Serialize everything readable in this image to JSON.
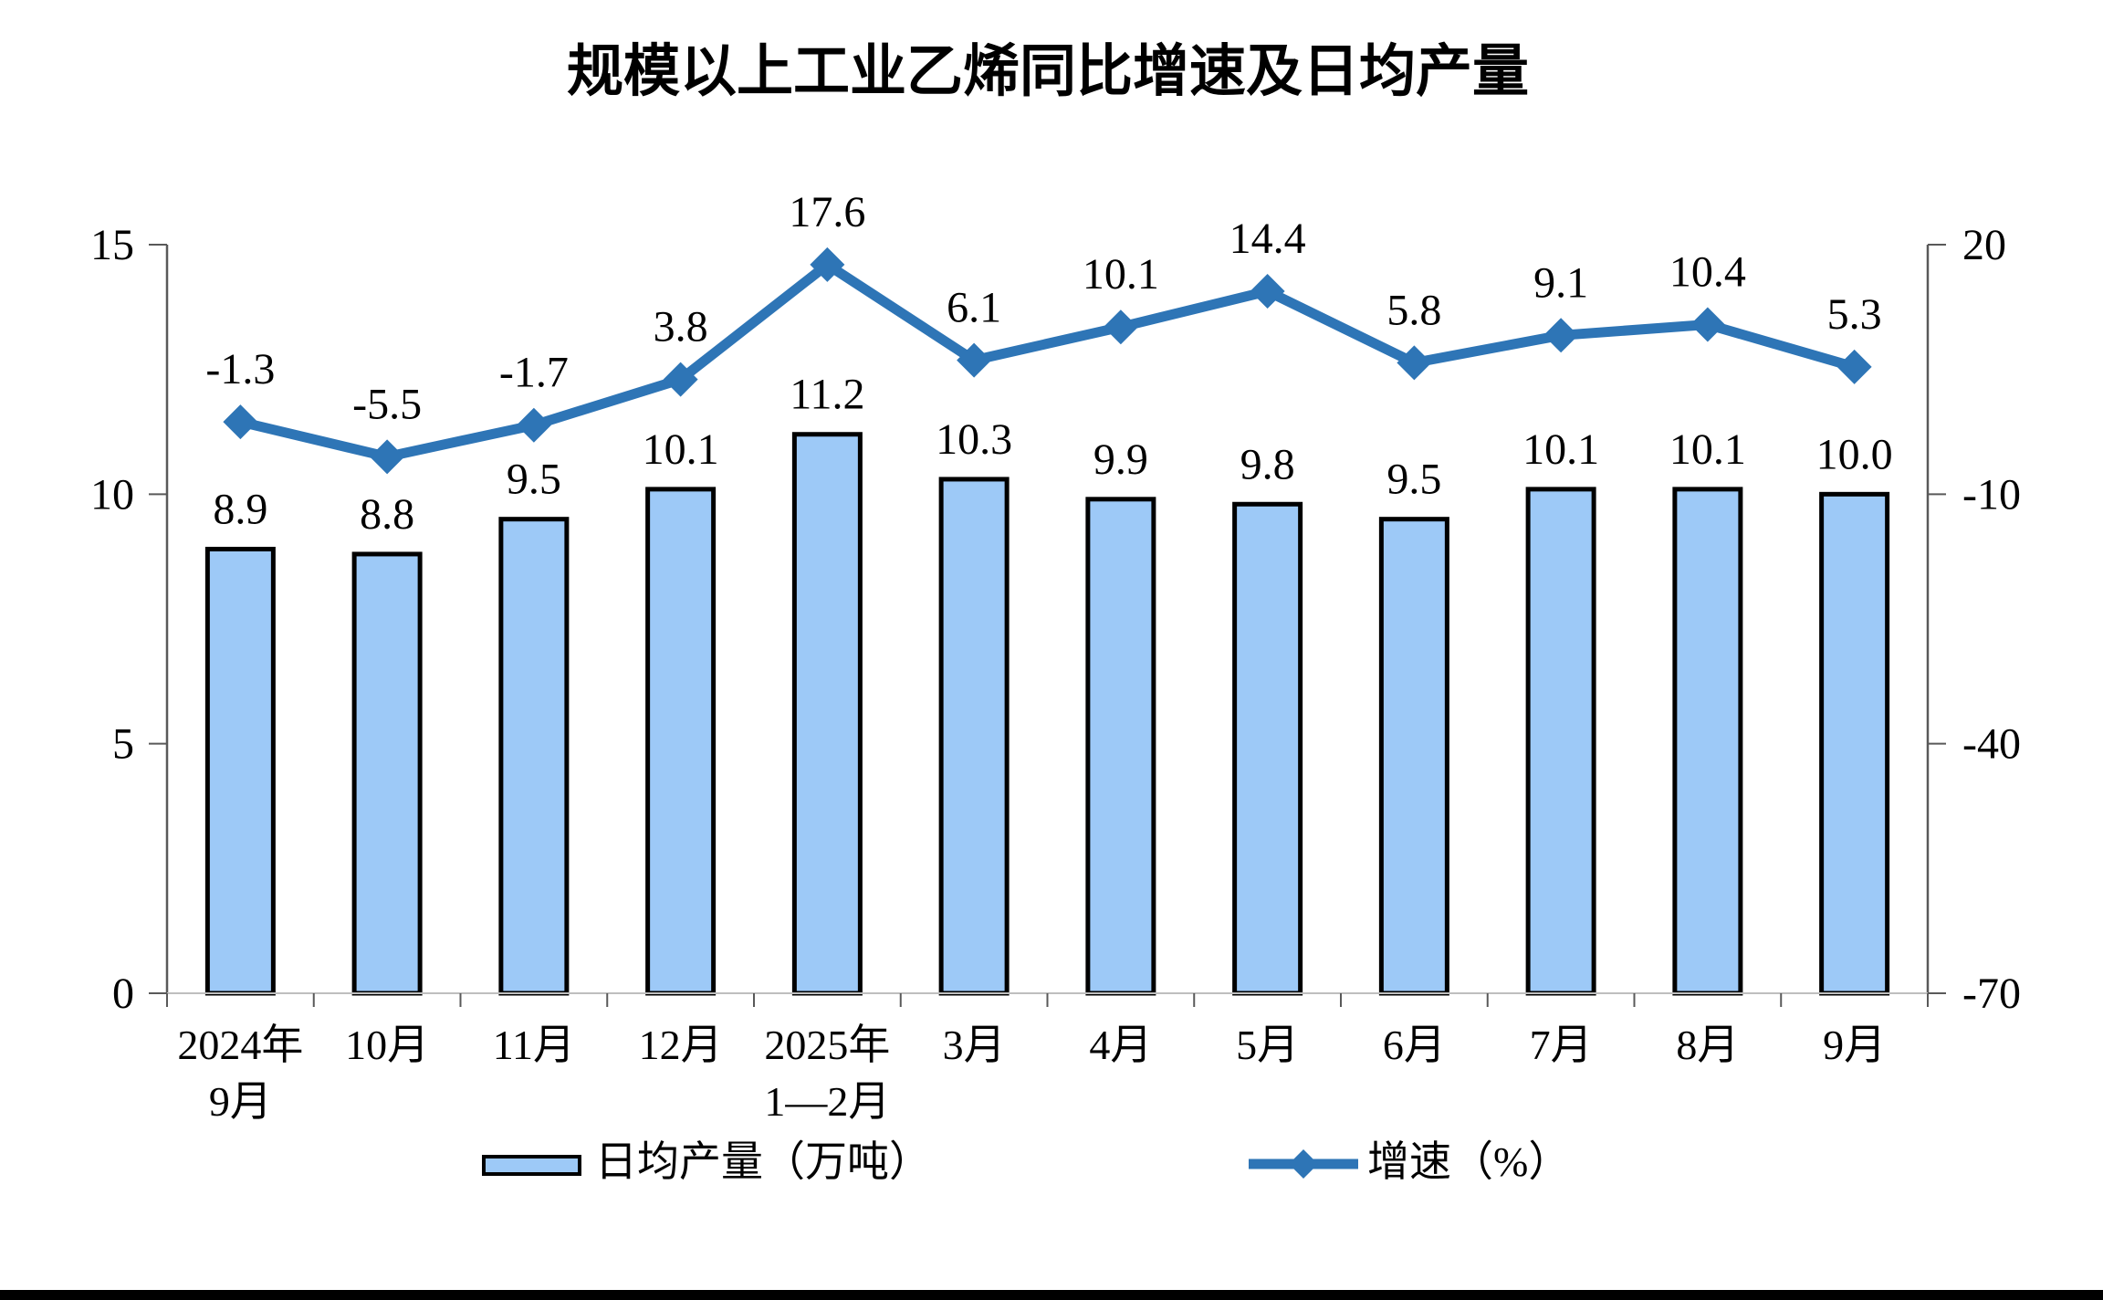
{
  "title": "规模以上工业乙烯同比增速及日均产量",
  "chart_data": {
    "type": "combo-bar-line",
    "title": "规模以上工业乙烯同比增速及日均产量",
    "categories": [
      [
        "2024年",
        "9月"
      ],
      [
        "10月"
      ],
      [
        "11月"
      ],
      [
        "12月"
      ],
      [
        "2025年",
        "1—2月"
      ],
      [
        "3月"
      ],
      [
        "4月"
      ],
      [
        "5月"
      ],
      [
        "6月"
      ],
      [
        "7月"
      ],
      [
        "8月"
      ],
      [
        "9月"
      ]
    ],
    "series": [
      {
        "name": "日均产量（万吨）",
        "chart": "bar",
        "axis": "left",
        "color": "#9DC9F7",
        "border_color": "#000000",
        "values": [
          8.9,
          8.8,
          9.5,
          10.1,
          11.2,
          10.3,
          9.9,
          9.8,
          9.5,
          10.1,
          10.1,
          10.0
        ],
        "labels": [
          "8.9",
          "8.8",
          "9.5",
          "10.1",
          "11.2",
          "10.3",
          "9.9",
          "9.8",
          "9.5",
          "10.1",
          "10.1",
          "10.0"
        ]
      },
      {
        "name": "增速（%）",
        "chart": "line",
        "axis": "right",
        "color": "#2E75B6",
        "marker": "diamond",
        "values": [
          -1.3,
          -5.5,
          -1.7,
          3.8,
          17.6,
          6.1,
          10.1,
          14.4,
          5.8,
          9.1,
          10.4,
          5.3
        ],
        "labels": [
          "-1.3",
          "-5.5",
          "-1.7",
          "3.8",
          "17.6",
          "6.1",
          "10.1",
          "14.4",
          "5.8",
          "9.1",
          "10.4",
          "5.3"
        ]
      }
    ],
    "left_axis": {
      "range": [
        0,
        15
      ],
      "tick_values": [
        15,
        10,
        5,
        0
      ],
      "tick_labels": [
        "15",
        "10",
        "5",
        "0"
      ]
    },
    "right_axis": {
      "range": [
        -70,
        20
      ],
      "tick_values": [
        20,
        -10,
        -40,
        -70
      ],
      "tick_labels": [
        "20",
        "-10",
        "-40",
        "-70"
      ]
    },
    "legend_position": "bottom",
    "grid": false
  },
  "legend": {
    "bar_label": "日均产量（万吨）",
    "line_label": "增速（%）"
  }
}
